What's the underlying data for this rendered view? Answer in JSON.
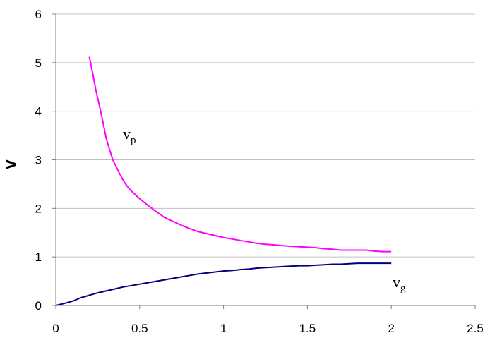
{
  "chart_data": {
    "type": "line",
    "title": "",
    "xlabel": "",
    "ylabel": "v",
    "xlim": [
      0,
      2.5
    ],
    "ylim": [
      0,
      6
    ],
    "x_ticks": [
      "0",
      "0.5",
      "1",
      "1.5",
      "2",
      "2.5"
    ],
    "y_ticks": [
      "0",
      "1",
      "2",
      "3",
      "4",
      "5",
      "6"
    ],
    "grid": "horizontal",
    "legend": "none",
    "series": [
      {
        "label_main": "v",
        "label_sub": "p",
        "color": "#ff00ff",
        "x": [
          0.2,
          0.22,
          0.24,
          0.26,
          0.28,
          0.3,
          0.32,
          0.34,
          0.36,
          0.38,
          0.4,
          0.42,
          0.45,
          0.5,
          0.55,
          0.6,
          0.65,
          0.7,
          0.75,
          0.8,
          0.85,
          0.9,
          0.95,
          1.0,
          1.05,
          1.1,
          1.15,
          1.2,
          1.25,
          1.3,
          1.35,
          1.4,
          1.45,
          1.5,
          1.55,
          1.6,
          1.65,
          1.7,
          1.75,
          1.8,
          1.85,
          1.9,
          1.95,
          2.0
        ],
        "y": [
          5.12,
          4.78,
          4.42,
          4.12,
          3.8,
          3.45,
          3.22,
          3.0,
          2.86,
          2.72,
          2.59,
          2.48,
          2.36,
          2.2,
          2.06,
          1.93,
          1.81,
          1.73,
          1.65,
          1.58,
          1.52,
          1.48,
          1.44,
          1.4,
          1.37,
          1.34,
          1.31,
          1.28,
          1.26,
          1.25,
          1.23,
          1.22,
          1.21,
          1.2,
          1.19,
          1.17,
          1.16,
          1.14,
          1.14,
          1.14,
          1.14,
          1.12,
          1.11,
          1.11
        ]
      },
      {
        "label_main": "v",
        "label_sub": "g",
        "color": "#000080",
        "x": [
          0.0,
          0.05,
          0.1,
          0.15,
          0.2,
          0.25,
          0.3,
          0.35,
          0.4,
          0.45,
          0.5,
          0.55,
          0.6,
          0.65,
          0.7,
          0.75,
          0.8,
          0.85,
          0.9,
          0.95,
          1.0,
          1.05,
          1.1,
          1.15,
          1.2,
          1.25,
          1.3,
          1.35,
          1.4,
          1.45,
          1.5,
          1.55,
          1.6,
          1.65,
          1.7,
          1.75,
          1.8,
          1.85,
          1.9,
          1.95,
          2.0
        ],
        "y": [
          0.0,
          0.04,
          0.09,
          0.16,
          0.21,
          0.26,
          0.3,
          0.34,
          0.38,
          0.41,
          0.44,
          0.47,
          0.5,
          0.53,
          0.56,
          0.59,
          0.62,
          0.65,
          0.67,
          0.69,
          0.71,
          0.72,
          0.74,
          0.75,
          0.77,
          0.78,
          0.79,
          0.8,
          0.81,
          0.82,
          0.82,
          0.83,
          0.84,
          0.85,
          0.85,
          0.86,
          0.87,
          0.87,
          0.87,
          0.87,
          0.87
        ]
      }
    ]
  }
}
